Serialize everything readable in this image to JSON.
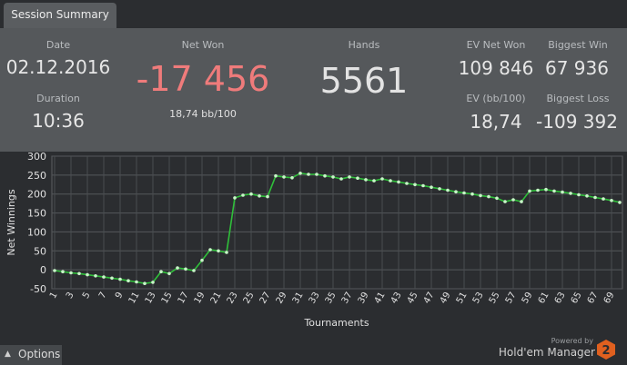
{
  "tabs": [
    {
      "label": "Session Summary"
    }
  ],
  "summary": {
    "date_label": "Date",
    "date_value": "02.12.2016",
    "duration_label": "Duration",
    "duration_value": "10:36",
    "net_won_label": "Net Won",
    "net_won_value": "-17 456",
    "net_won_sub": "18,74 bb/100",
    "hands_label": "Hands",
    "hands_value": "5561",
    "ev_net_won_label": "EV Net Won",
    "ev_net_won_value": "109 846",
    "biggest_win_label": "Biggest Win",
    "biggest_win_value": "67 936",
    "ev_bb100_label": "EV (bb/100)",
    "ev_bb100_value": "18,74",
    "biggest_loss_label": "Biggest Loss",
    "biggest_loss_value": "-109 392"
  },
  "colors": {
    "negative": "#ef7b7b",
    "series": "#2fbf3a",
    "marker": "#c8f5c8"
  },
  "footer": {
    "options_label": "Options",
    "options_icon": "chevron-up-icon",
    "powered_by": "Powered by",
    "brand": "Hold'em Manager",
    "logo_digit": "2"
  },
  "chart_data": {
    "type": "line",
    "xlabel": "Tournaments",
    "ylabel": "Net Winnings",
    "ylim": [
      -50,
      300
    ],
    "yticks": [
      -50,
      0,
      50,
      100,
      150,
      200,
      250,
      300
    ],
    "xlim": [
      1,
      70
    ],
    "xticks": [
      "1",
      "3",
      "5",
      "7",
      "9",
      "11",
      "13",
      "15",
      "17",
      "19",
      "21",
      "23",
      "25",
      "27",
      "29",
      "31",
      "33",
      "35",
      "37",
      "39",
      "41",
      "43",
      "45",
      "47",
      "49",
      "51",
      "53",
      "55",
      "57",
      "59",
      "61",
      "63",
      "65",
      "67",
      "69"
    ],
    "grid": true,
    "series": [
      {
        "x": [
          1,
          2,
          3,
          4,
          5,
          6,
          7,
          8,
          9,
          10,
          11,
          12,
          13,
          14,
          15,
          16,
          17,
          18,
          19,
          20,
          21,
          22,
          23,
          24,
          25,
          26,
          27,
          28,
          29,
          30,
          31,
          32,
          33,
          34,
          35,
          36,
          37,
          38,
          39,
          40,
          41,
          42,
          43,
          44,
          45,
          46,
          47,
          48,
          49,
          50,
          51,
          52,
          53,
          54,
          55,
          56,
          57,
          58,
          59,
          60,
          61,
          62,
          63,
          64,
          65,
          66,
          67,
          68,
          69,
          70
        ],
        "values": [
          -2,
          -5,
          -8,
          -10,
          -13,
          -16,
          -19,
          -22,
          -25,
          -29,
          -32,
          -36,
          -33,
          -5,
          -10,
          5,
          2,
          -2,
          25,
          53,
          50,
          46,
          190,
          197,
          200,
          195,
          193,
          248,
          245,
          243,
          255,
          252,
          252,
          248,
          245,
          240,
          245,
          242,
          238,
          235,
          240,
          235,
          232,
          228,
          225,
          222,
          218,
          214,
          210,
          206,
          203,
          200,
          196,
          193,
          189,
          180,
          185,
          180,
          208,
          210,
          212,
          208,
          205,
          202,
          198,
          195,
          191,
          187,
          183,
          178
        ]
      }
    ]
  }
}
